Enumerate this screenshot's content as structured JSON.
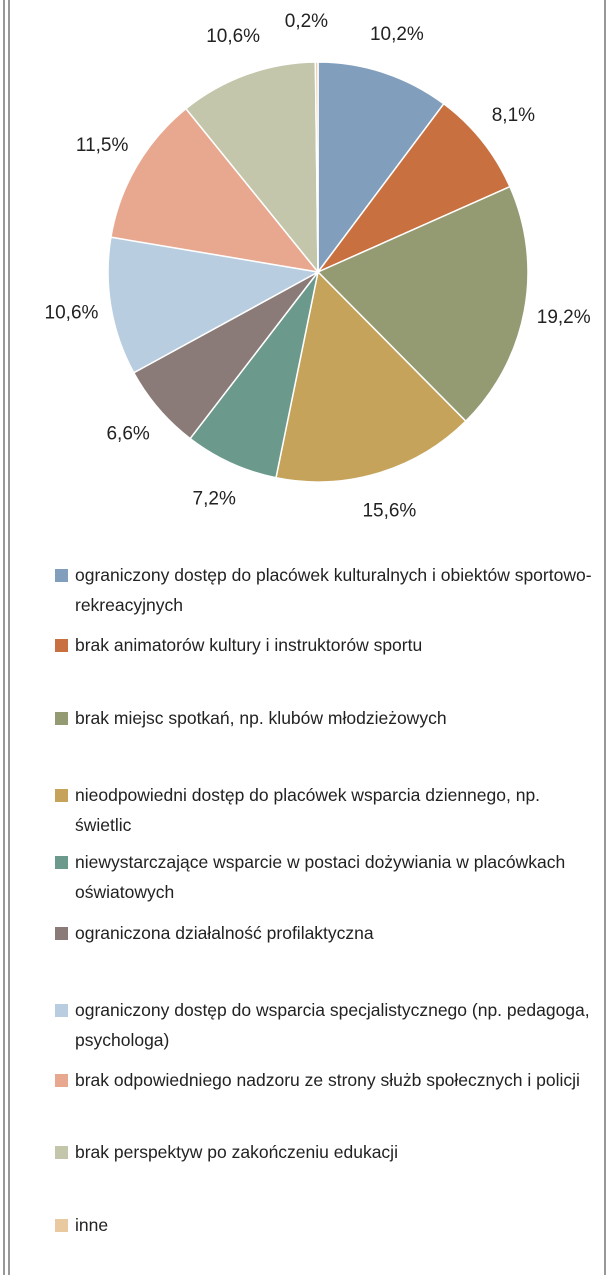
{
  "chart_data": {
    "type": "pie",
    "categories": [
      "ograniczony dostęp do placówek kulturalnych i obiektów sportowo-rekreacyjnych",
      "brak animatorów kultury i instruktorów sportu",
      "brak miejsc spotkań, np. klubów młodzieżowych",
      "nieodpowiedni dostęp do placówek wsparcia dziennego, np. świetlic",
      "niewystarczające wsparcie w postaci dożywiania w placówkach oświatowych",
      "ograniczona działalność profilaktyczna",
      "ograniczony dostęp do wsparcia specjalistycznego (np. pedagoga, psychologa)",
      "brak odpowiedniego nadzoru ze strony służb społecznych i policji",
      "brak perspektyw po zakończeniu edukacji",
      "inne"
    ],
    "values": [
      10.2,
      8.1,
      19.2,
      15.6,
      7.2,
      6.6,
      10.6,
      11.5,
      10.6,
      0.2
    ],
    "value_labels": [
      "10,2%",
      "8,1%",
      "19,2%",
      "15,6%",
      "7,2%",
      "6,6%",
      "10,6%",
      "11,5%",
      "10,6%",
      "0,2%"
    ],
    "colors": [
      "#819fbd",
      "#c8703f",
      "#949a72",
      "#c5a35a",
      "#6b9a8c",
      "#8a7b78",
      "#b8cde0",
      "#e8a890",
      "#c3c6ab",
      "#e8c9a0"
    ],
    "legend": "bottom"
  }
}
